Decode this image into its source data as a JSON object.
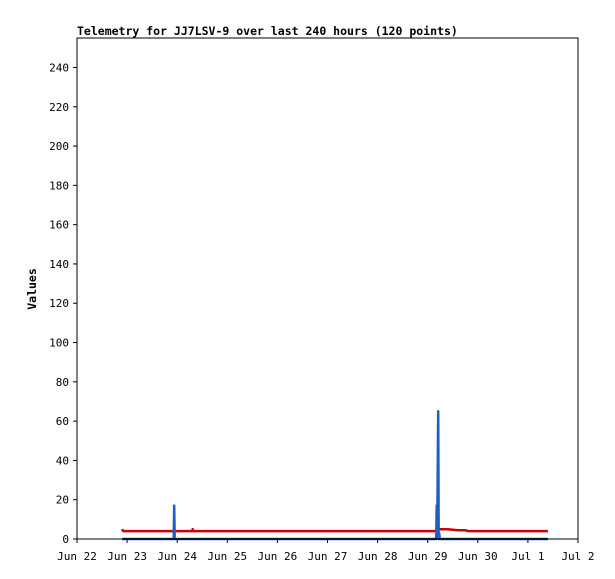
{
  "chart_data": {
    "type": "line",
    "title": "Telemetry for JJ7LSV-9 over last 240 hours (120 points)",
    "xlabel": "",
    "ylabel": "Values",
    "xlim": [
      "Jun 22",
      "Jul 2"
    ],
    "ylim": [
      0,
      255
    ],
    "grid": false,
    "x_ticks": [
      "Jun 22",
      "Jun 23",
      "Jun 24",
      "Jun 25",
      "Jun 26",
      "Jun 27",
      "Jun 28",
      "Jun 29",
      "Jun 30",
      "Jul 1",
      "Jul 2"
    ],
    "y_ticks": [
      0,
      20,
      40,
      60,
      80,
      100,
      120,
      140,
      160,
      180,
      200,
      220,
      240
    ],
    "series": [
      {
        "color": "#cc0000",
        "points": [
          [
            0.9,
            5
          ],
          [
            0.92,
            4
          ],
          [
            1.3,
            4
          ],
          [
            2.3,
            4
          ],
          [
            2.31,
            5
          ],
          [
            2.32,
            4
          ],
          [
            4.0,
            4
          ],
          [
            6.0,
            4
          ],
          [
            7.15,
            4
          ],
          [
            7.2,
            5
          ],
          [
            7.3,
            5
          ],
          [
            7.4,
            5
          ],
          [
            7.6,
            4.5
          ],
          [
            7.75,
            4.5
          ],
          [
            7.8,
            4
          ],
          [
            8.5,
            4
          ],
          [
            9.4,
            4
          ]
        ]
      },
      {
        "color": "#1f5fbf",
        "points": [
          [
            0.9,
            0
          ],
          [
            1.93,
            0
          ],
          [
            1.94,
            17
          ],
          [
            1.95,
            0
          ],
          [
            7.17,
            0
          ],
          [
            7.18,
            17
          ],
          [
            7.19,
            1
          ],
          [
            7.21,
            65
          ],
          [
            7.22,
            0
          ],
          [
            7.23,
            3
          ],
          [
            7.24,
            0
          ],
          [
            9.4,
            0
          ]
        ]
      },
      {
        "color": "#000000",
        "points": [
          [
            0.9,
            0
          ],
          [
            9.4,
            0
          ]
        ]
      }
    ]
  }
}
